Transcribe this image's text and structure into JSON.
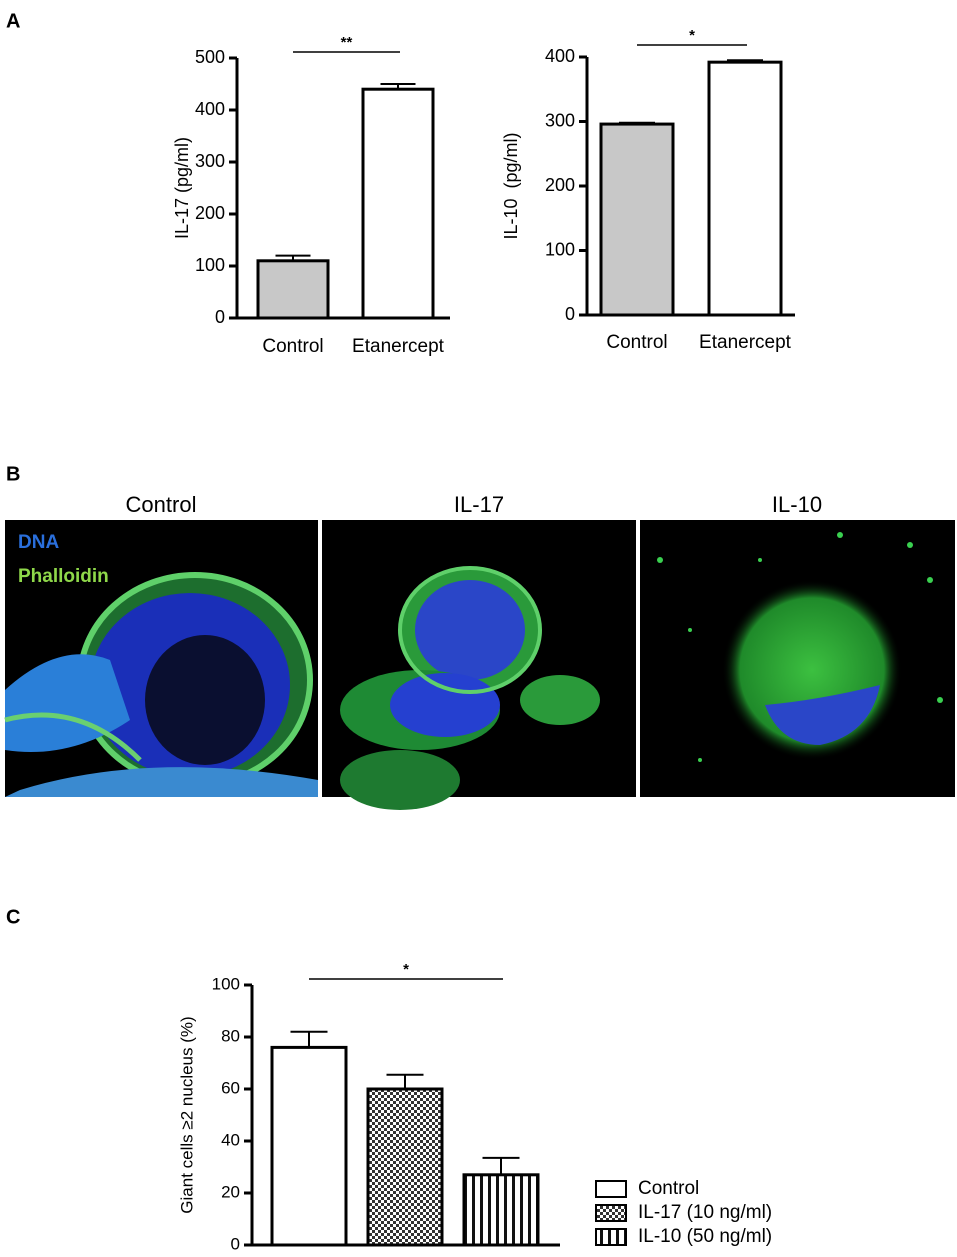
{
  "panel_labels": [
    "A",
    "B",
    "C"
  ],
  "micrographs": {
    "titles": [
      "Control",
      "IL-17",
      "IL-10"
    ],
    "stains": [
      "DNA",
      "Phalloidin"
    ]
  },
  "chart_data": [
    {
      "type": "bar",
      "y_label": "IL-17 (pg/ml)",
      "categories": [
        "Control",
        "Etanercept"
      ],
      "values": [
        110,
        440
      ],
      "errors": [
        10,
        10
      ],
      "colors": [
        "#c8c8c8",
        "#ffffff"
      ],
      "ylim": [
        0,
        500
      ],
      "yticks": [
        0,
        100,
        200,
        300,
        400,
        500
      ],
      "annotation": "**"
    },
    {
      "type": "bar",
      "y_label": "IL-10  (pg/ml)",
      "categories": [
        "Control",
        "Etanercept"
      ],
      "values": [
        296,
        392
      ],
      "errors": [
        2,
        3
      ],
      "colors": [
        "#c8c8c8",
        "#ffffff"
      ],
      "ylim": [
        0,
        400
      ],
      "yticks": [
        0,
        100,
        200,
        300,
        400
      ],
      "annotation": "*"
    },
    {
      "type": "bar",
      "y_label": "Giant cells ≥2 nucleus (%)",
      "categories": [
        "Control",
        "IL-17 (10 ng/ml)",
        "IL-10 (50 ng/ml)"
      ],
      "values": [
        76,
        60,
        27
      ],
      "errors": [
        6,
        5.5,
        6.5
      ],
      "patterns": [
        "solid",
        "checker",
        "vstripes"
      ],
      "ylim": [
        0,
        100
      ],
      "yticks": [
        0,
        20,
        40,
        60,
        80,
        100
      ],
      "annotation": "*",
      "legend": "lower-right"
    }
  ]
}
